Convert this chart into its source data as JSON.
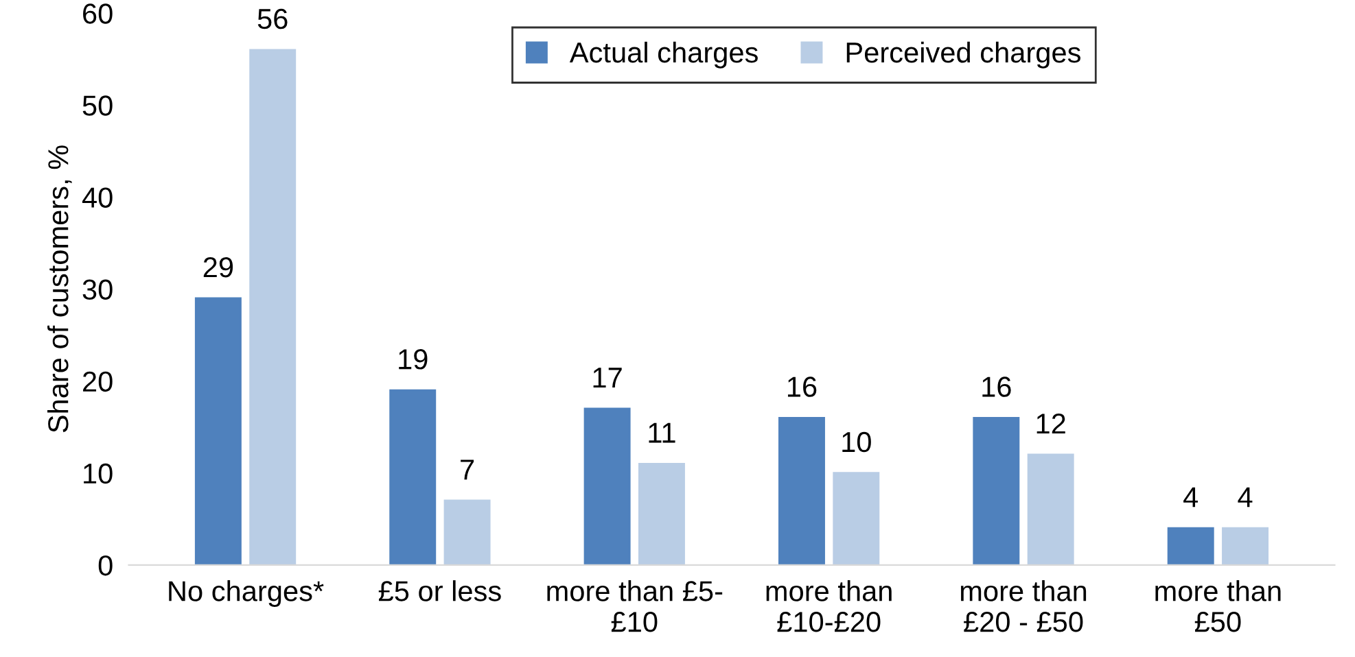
{
  "chart_data": {
    "type": "bar",
    "ylabel": "Share of customers, %",
    "categories": [
      "No charges*",
      "£5 or less",
      "more than £5-\n£10",
      "more than\n£10-£20",
      "more than\n£20 - £50",
      "more than\n£50"
    ],
    "series": [
      {
        "name": "Actual charges",
        "color": "#4f81bd",
        "values": [
          29,
          19,
          17,
          16,
          16,
          4
        ]
      },
      {
        "name": "Perceived charges",
        "color": "#b9cde5",
        "values": [
          56,
          7,
          11,
          10,
          12,
          4
        ]
      }
    ],
    "ylim": [
      0,
      60
    ],
    "yticks": [
      0,
      10,
      20,
      30,
      40,
      50,
      60
    ],
    "data_labels": true,
    "legend": "top",
    "grid": false
  }
}
